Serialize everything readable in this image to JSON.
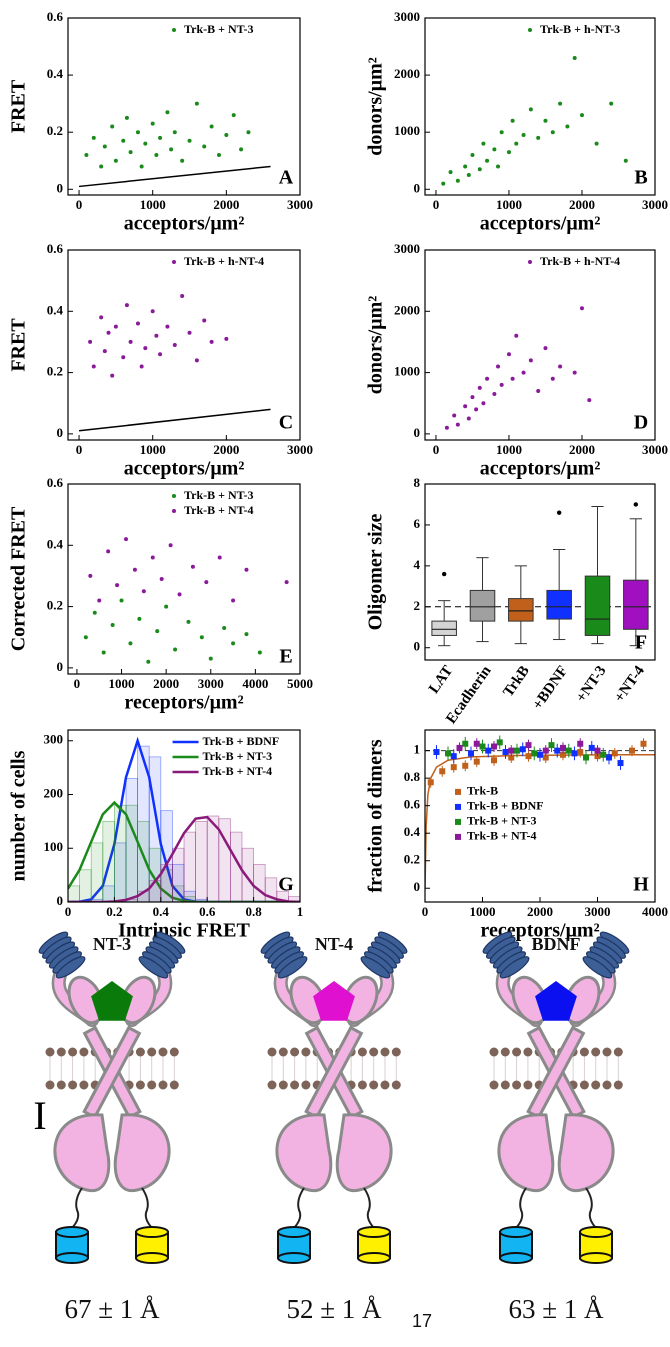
{
  "chart_data": [
    {
      "type": "scatter",
      "panel": "A",
      "xlabel": "acceptors/μm²",
      "ylabel": "FRET",
      "xlim": [
        -150,
        3000
      ],
      "ylim": [
        -0.02,
        0.6
      ],
      "xticks": [
        0,
        1000,
        2000,
        3000
      ],
      "yticks": [
        0,
        0.2,
        0.4,
        0.6
      ],
      "legend": "upper right",
      "series": [
        {
          "name": "Trk-B + NT-3",
          "color": "#1a8a1a",
          "x": [
            100,
            200,
            300,
            350,
            450,
            500,
            600,
            650,
            700,
            800,
            850,
            900,
            1000,
            1050,
            1100,
            1200,
            1250,
            1300,
            1400,
            1500,
            1600,
            1700,
            1800,
            1900,
            2000,
            2100,
            2200,
            2300
          ],
          "y": [
            0.12,
            0.18,
            0.08,
            0.15,
            0.22,
            0.1,
            0.17,
            0.25,
            0.13,
            0.2,
            0.08,
            0.16,
            0.23,
            0.12,
            0.18,
            0.27,
            0.14,
            0.2,
            0.1,
            0.17,
            0.3,
            0.15,
            0.22,
            0.12,
            0.19,
            0.26,
            0.14,
            0.2
          ]
        },
        {
          "color": "#000000",
          "style": "line",
          "x": [
            0,
            2600
          ],
          "y": [
            0.01,
            0.08
          ]
        }
      ]
    },
    {
      "type": "scatter",
      "panel": "B",
      "xlabel": "acceptors/μm²",
      "ylabel": "donors/μm²",
      "xlim": [
        -150,
        3000
      ],
      "ylim": [
        -100,
        3000
      ],
      "xticks": [
        0,
        1000,
        2000,
        3000
      ],
      "yticks": [
        0,
        1000,
        2000,
        3000
      ],
      "legend": "upper right",
      "series": [
        {
          "name": "Trk-B + h-NT-3",
          "color": "#1a8a1a",
          "x": [
            100,
            200,
            300,
            400,
            450,
            500,
            600,
            650,
            700,
            800,
            850,
            900,
            1000,
            1050,
            1100,
            1200,
            1300,
            1400,
            1500,
            1600,
            1700,
            1800,
            1900,
            2000,
            2200,
            2400,
            2600
          ],
          "y": [
            100,
            300,
            150,
            400,
            250,
            600,
            350,
            800,
            500,
            700,
            400,
            1000,
            650,
            1200,
            800,
            950,
            1400,
            900,
            1200,
            1000,
            1500,
            1100,
            2300,
            1300,
            800,
            1500,
            500
          ]
        }
      ]
    },
    {
      "type": "scatter",
      "panel": "C",
      "xlabel": "acceptors/μm²",
      "ylabel": "FRET",
      "xlim": [
        -150,
        3000
      ],
      "ylim": [
        -0.02,
        0.6
      ],
      "xticks": [
        0,
        1000,
        2000,
        3000
      ],
      "yticks": [
        0,
        0.2,
        0.4,
        0.6
      ],
      "legend": "upper right",
      "series": [
        {
          "name": "Trk-B + h-NT-4",
          "color": "#8a1a9a",
          "x": [
            150,
            200,
            300,
            350,
            400,
            450,
            500,
            600,
            650,
            700,
            800,
            850,
            900,
            1000,
            1050,
            1100,
            1200,
            1300,
            1400,
            1500,
            1600,
            1700,
            1800,
            2000
          ],
          "y": [
            0.3,
            0.22,
            0.38,
            0.27,
            0.33,
            0.19,
            0.35,
            0.25,
            0.42,
            0.3,
            0.36,
            0.22,
            0.28,
            0.4,
            0.32,
            0.26,
            0.35,
            0.29,
            0.45,
            0.33,
            0.24,
            0.37,
            0.3,
            0.31
          ]
        },
        {
          "color": "#000000",
          "style": "line",
          "x": [
            0,
            2600
          ],
          "y": [
            0.01,
            0.08
          ]
        }
      ]
    },
    {
      "type": "scatter",
      "panel": "D",
      "xlabel": "acceptors/μm²",
      "ylabel": "donors/μm²",
      "xlim": [
        -150,
        3000
      ],
      "ylim": [
        -100,
        3000
      ],
      "xticks": [
        0,
        1000,
        2000,
        3000
      ],
      "yticks": [
        0,
        1000,
        2000,
        3000
      ],
      "legend": "upper right",
      "series": [
        {
          "name": "Trk-B + h-NT-4",
          "color": "#8a1a9a",
          "x": [
            150,
            250,
            300,
            400,
            450,
            500,
            550,
            600,
            650,
            700,
            800,
            850,
            900,
            1000,
            1050,
            1100,
            1200,
            1300,
            1400,
            1500,
            1600,
            1700,
            1900,
            2000,
            2100
          ],
          "y": [
            100,
            300,
            150,
            450,
            250,
            600,
            400,
            750,
            500,
            900,
            650,
            1100,
            800,
            1300,
            900,
            1600,
            1000,
            1200,
            700,
            1400,
            900,
            1100,
            1000,
            2050,
            550
          ]
        }
      ]
    },
    {
      "type": "scatter",
      "panel": "E",
      "xlabel": "receptors/μm²",
      "ylabel": "Corrected FRET",
      "xlim": [
        -200,
        5000
      ],
      "ylim": [
        -0.02,
        0.6
      ],
      "xticks": [
        0,
        1000,
        2000,
        3000,
        4000,
        5000
      ],
      "yticks": [
        0,
        0.2,
        0.4,
        0.6
      ],
      "legend": "upper right",
      "series": [
        {
          "name": "Trk-B + NT-3",
          "color": "#1a8a1a",
          "x": [
            200,
            400,
            600,
            800,
            1000,
            1200,
            1400,
            1600,
            1800,
            2000,
            2200,
            2500,
            2800,
            3000,
            3300,
            3500,
            3800,
            4100
          ],
          "y": [
            0.1,
            0.18,
            0.05,
            0.14,
            0.22,
            0.08,
            0.16,
            0.02,
            0.12,
            0.2,
            0.06,
            0.15,
            0.1,
            0.03,
            0.13,
            0.08,
            0.11,
            0.05
          ]
        },
        {
          "name": "Trk-B + NT-4",
          "color": "#8a1a9a",
          "x": [
            300,
            500,
            700,
            900,
            1100,
            1300,
            1500,
            1700,
            1900,
            2100,
            2300,
            2600,
            2900,
            3200,
            3500,
            3800,
            4700
          ],
          "y": [
            0.3,
            0.22,
            0.38,
            0.27,
            0.42,
            0.32,
            0.25,
            0.36,
            0.29,
            0.4,
            0.24,
            0.33,
            0.28,
            0.36,
            0.22,
            0.32,
            0.28
          ]
        }
      ]
    },
    {
      "type": "box",
      "panel": "F",
      "ylabel": "Oligomer size",
      "ylim": [
        -0.6,
        8
      ],
      "yticks": [
        0,
        2,
        4,
        6,
        8
      ],
      "reference_line": 2,
      "categories": [
        "LAT",
        "Ecadherin",
        "TrkB",
        "+BDNF",
        "+NT-3",
        "+NT-4"
      ],
      "boxes": [
        {
          "whisker_low": 0.1,
          "q1": 0.6,
          "median": 0.9,
          "q3": 1.3,
          "whisker_high": 2.3,
          "outliers": [
            3.6
          ],
          "color": "#d4d4d4"
        },
        {
          "whisker_low": 0.3,
          "q1": 1.3,
          "median": 2.0,
          "q3": 2.8,
          "whisker_high": 4.4,
          "outliers": [],
          "color": "#a0a0a0"
        },
        {
          "whisker_low": 0.2,
          "q1": 1.3,
          "median": 1.8,
          "q3": 2.4,
          "whisker_high": 4.0,
          "outliers": [],
          "color": "#c0601a"
        },
        {
          "whisker_low": 0.4,
          "q1": 1.4,
          "median": 2.0,
          "q3": 2.8,
          "whisker_high": 4.8,
          "outliers": [
            6.6
          ],
          "color": "#1030ff"
        },
        {
          "whisker_low": 0.2,
          "q1": 0.6,
          "median": 1.4,
          "q3": 3.5,
          "whisker_high": 6.9,
          "outliers": [],
          "color": "#1a8a1a"
        },
        {
          "whisker_low": 0.1,
          "q1": 0.9,
          "median": 2.0,
          "q3": 3.3,
          "whisker_high": 6.3,
          "outliers": [
            7.0
          ],
          "color": "#a010c0"
        }
      ]
    },
    {
      "type": "histogram",
      "panel": "G",
      "xlabel": "Intrinsic FRET",
      "ylabel": "number of cells",
      "xlim": [
        0,
        1
      ],
      "ylim": [
        0,
        320
      ],
      "xticks": [
        0,
        0.2,
        0.4,
        0.6,
        0.8,
        1
      ],
      "yticks": [
        0,
        100,
        200,
        300
      ],
      "legend": "upper right",
      "bins": [
        0,
        0.05,
        0.1,
        0.15,
        0.2,
        0.25,
        0.3,
        0.35,
        0.4,
        0.45,
        0.5,
        0.55,
        0.6,
        0.65,
        0.7,
        0.75,
        0.8,
        0.85,
        0.9,
        0.95,
        1
      ],
      "fit_x": [
        0,
        0.05,
        0.1,
        0.15,
        0.2,
        0.25,
        0.3,
        0.35,
        0.4,
        0.45,
        0.5,
        0.55,
        0.6,
        0.65,
        0.7,
        0.75,
        0.8,
        0.85,
        0.9,
        0.95,
        1
      ],
      "series": [
        {
          "name": "Trk-B + BDNF",
          "color": "#1030ff",
          "values": [
            0,
            0,
            5,
            30,
            110,
            230,
            290,
            270,
            170,
            70,
            20,
            5,
            0,
            0,
            0,
            0,
            0,
            0,
            0,
            0
          ],
          "fit": [
            0,
            0.5,
            5,
            30,
            108,
            232,
            300,
            232,
            108,
            30,
            5,
            0.5,
            0,
            0,
            0,
            0,
            0,
            0,
            0,
            0,
            0
          ]
        },
        {
          "name": "Trk-B + NT-3",
          "color": "#1a8a1a",
          "values": [
            30,
            60,
            110,
            150,
            180,
            180,
            150,
            100,
            60,
            30,
            10,
            0,
            0,
            0,
            0,
            0,
            0,
            0,
            0,
            0
          ],
          "fit": [
            25,
            60,
            112,
            163,
            185,
            163,
            112,
            60,
            25,
            8,
            2,
            0,
            0,
            0,
            0,
            0,
            0,
            0,
            0,
            0,
            0
          ]
        },
        {
          "name": "Trk-B + NT-4",
          "color": "#8a1a7a",
          "values": [
            0,
            0,
            0,
            0,
            0,
            5,
            20,
            40,
            70,
            100,
            130,
            150,
            160,
            155,
            130,
            100,
            70,
            45,
            20,
            10
          ],
          "fit": [
            0,
            0,
            0,
            0,
            1,
            4,
            11,
            25,
            52,
            89,
            128,
            155,
            158,
            135,
            97,
            59,
            30,
            13,
            5,
            1,
            0
          ]
        }
      ]
    },
    {
      "type": "errorbar",
      "panel": "H",
      "xlabel": "receptors/μm²",
      "ylabel": "fraction of dimers",
      "xlim": [
        0,
        4000
      ],
      "ylim": [
        -0.1,
        1.15
      ],
      "xticks": [
        0,
        1000,
        2000,
        3000,
        4000
      ],
      "yticks": [
        0,
        0.2,
        0.4,
        0.6,
        0.8,
        1
      ],
      "legend": "lower left",
      "hline": 1,
      "series": [
        {
          "name": "Trk-B",
          "color": "#c0601a",
          "error": 0.04,
          "x": [
            100,
            300,
            500,
            700,
            900,
            1200,
            1500,
            1800,
            2100,
            2400,
            2700,
            3000,
            3300,
            3600,
            3800
          ],
          "y": [
            0.77,
            0.85,
            0.88,
            0.89,
            0.92,
            0.93,
            0.95,
            0.96,
            0.95,
            0.97,
            0.99,
            0.96,
            0.98,
            1.0,
            1.05
          ],
          "fit_x": [
            0,
            20,
            50,
            100,
            200,
            400,
            800,
            1600,
            3200,
            4000
          ],
          "fit_y": [
            0,
            0.45,
            0.68,
            0.8,
            0.88,
            0.93,
            0.955,
            0.965,
            0.97,
            0.97
          ]
        },
        {
          "name": "Trk-B + BDNF",
          "color": "#1030ff",
          "error": 0.05,
          "x": [
            200,
            500,
            800,
            1100,
            1400,
            1700,
            2000,
            2300,
            2600,
            2900,
            3200,
            3400
          ],
          "y": [
            0.99,
            0.96,
            0.98,
            1.0,
            0.99,
            1.01,
            0.97,
            1.0,
            0.98,
            1.02,
            0.95,
            0.91
          ]
        },
        {
          "name": "Trk-B + NT-3",
          "color": "#1a8a1a",
          "error": 0.05,
          "x": [
            400,
            700,
            1000,
            1300,
            1600,
            1900,
            2200,
            2500,
            2800,
            3100
          ],
          "y": [
            0.98,
            1.05,
            1.03,
            1.06,
            1.0,
            0.98,
            1.04,
            1.0,
            0.95,
            0.97
          ]
        },
        {
          "name": "Trk-B + NT-4",
          "color": "#8a1a9a",
          "error": 0.04,
          "x": [
            600,
            900,
            1200,
            1500,
            1800,
            2100,
            2400,
            2700,
            3000
          ],
          "y": [
            1.02,
            1.05,
            1.03,
            1.0,
            1.04,
            1.0,
            1.02,
            1.05,
            1.0
          ]
        }
      ]
    }
  ],
  "diagram": {
    "panel": "I",
    "page_number": "17",
    "items": [
      {
        "ligand": "NT-3",
        "ligand_color": "#0a7a0a",
        "distance": "67 ± 1 Å"
      },
      {
        "ligand": "NT-4",
        "ligand_color": "#e010d0",
        "distance": "52 ± 1 Å"
      },
      {
        "ligand": "BDNF",
        "ligand_color": "#0a10f0",
        "distance": "63 ± 1 Å"
      }
    ]
  }
}
